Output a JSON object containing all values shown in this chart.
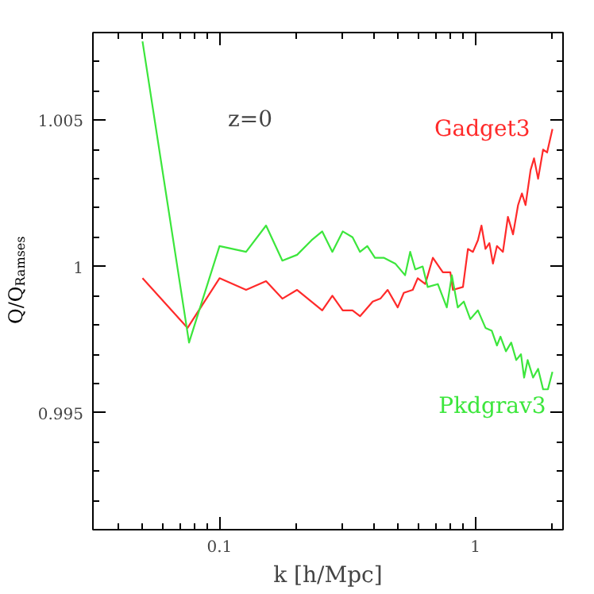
{
  "chart_data": {
    "type": "line",
    "xlabel": "k [h/Mpc]",
    "ylabel": "Q/Q$_{Ramses}$",
    "log": "x",
    "grid": false,
    "marker": "none",
    "line_style": "solid",
    "annotations": [
      "z=0"
    ],
    "xlim": [
      0.032,
      2.2
    ],
    "ylim": [
      0.991,
      1.008
    ],
    "xticks": [
      {
        "value": 0.04,
        "label": null
      },
      {
        "value": 0.05,
        "label": null
      },
      {
        "value": 0.06,
        "label": null
      },
      {
        "value": 0.07,
        "label": null
      },
      {
        "value": 0.08,
        "label": null
      },
      {
        "value": 0.09,
        "label": null
      },
      0.1,
      {
        "value": 0.2,
        "label": null
      },
      {
        "value": 0.3,
        "label": null
      },
      {
        "value": 0.4,
        "label": null
      },
      {
        "value": 0.5,
        "label": null
      },
      {
        "value": 0.6,
        "label": null
      },
      {
        "value": 0.7,
        "label": null
      },
      {
        "value": 0.8,
        "label": null
      },
      {
        "value": 0.9,
        "label": null
      },
      1,
      {
        "value": 2,
        "label": null
      }
    ],
    "yticks": [
      {
        "value": 0.992,
        "label": null
      },
      {
        "value": 0.993,
        "label": null
      },
      {
        "value": 0.994,
        "label": null
      },
      0.995,
      {
        "value": 0.996,
        "label": null
      },
      {
        "value": 0.997,
        "label": null
      },
      {
        "value": 0.998,
        "label": null
      },
      {
        "value": 0.999,
        "label": null
      },
      1,
      {
        "value": 1.001,
        "label": null
      },
      {
        "value": 1.002,
        "label": null
      },
      {
        "value": 1.003,
        "label": null
      },
      {
        "value": 1.004,
        "label": null
      },
      1.005,
      {
        "value": 1.006,
        "label": null
      },
      {
        "value": 1.007,
        "label": null
      },
      {
        "value": 1.008,
        "label": null
      }
    ],
    "series": [
      {
        "name": "Gadget3",
        "color": "#ff2a2a",
        "x": [
          0.05,
          0.075,
          0.1,
          0.127,
          0.152,
          0.176,
          0.201,
          0.252,
          0.276,
          0.303,
          0.331,
          0.354,
          0.397,
          0.425,
          0.454,
          0.497,
          0.525,
          0.569,
          0.595,
          0.637,
          0.682,
          0.746,
          0.798,
          0.817,
          0.894,
          0.935,
          0.978,
          1.023,
          1.056,
          1.095,
          1.134,
          1.171,
          1.214,
          1.281,
          1.34,
          1.403,
          1.468,
          1.52,
          1.57,
          1.643,
          1.695,
          1.758,
          1.839,
          1.906,
          2.0
        ],
        "values": [
          0.9996,
          0.9979,
          0.9996,
          0.9992,
          0.9995,
          0.9989,
          0.9992,
          0.9985,
          0.999,
          0.9985,
          0.9985,
          0.9983,
          0.9988,
          0.9989,
          0.9992,
          0.9986,
          0.9991,
          0.9992,
          0.9996,
          0.9994,
          1.0003,
          0.9998,
          0.9998,
          0.9992,
          0.9993,
          1.0006,
          1.0005,
          1.0009,
          1.0014,
          1.0006,
          1.0008,
          1.0001,
          1.0007,
          1.0005,
          1.0017,
          1.0011,
          1.0021,
          1.0025,
          1.0021,
          1.0033,
          1.0037,
          1.003,
          1.004,
          1.0039,
          1.0047
        ]
      },
      {
        "name": "Pkdgrav3",
        "color": "#3ce63c",
        "x": [
          0.05,
          0.076,
          0.1,
          0.127,
          0.152,
          0.176,
          0.201,
          0.229,
          0.252,
          0.276,
          0.303,
          0.331,
          0.354,
          0.378,
          0.405,
          0.438,
          0.486,
          0.531,
          0.556,
          0.582,
          0.622,
          0.651,
          0.713,
          0.773,
          0.809,
          0.853,
          0.901,
          0.955,
          1.023,
          1.095,
          1.159,
          1.214,
          1.253,
          1.316,
          1.38,
          1.444,
          1.507,
          1.55,
          1.6,
          1.68,
          1.758,
          1.839,
          1.92,
          2.0
        ],
        "values": [
          1.0077,
          0.9974,
          1.0007,
          1.0005,
          1.0014,
          1.0002,
          1.0004,
          1.0009,
          1.0012,
          1.0005,
          1.0012,
          1.001,
          1.0005,
          1.0007,
          1.0003,
          1.0003,
          1.0001,
          0.9997,
          1.0005,
          0.9999,
          1.0,
          0.9993,
          0.9994,
          0.9986,
          0.9997,
          0.9986,
          0.9988,
          0.9982,
          0.9985,
          0.9979,
          0.9978,
          0.9973,
          0.9976,
          0.9971,
          0.9974,
          0.9968,
          0.997,
          0.9962,
          0.9968,
          0.9962,
          0.9965,
          0.9958,
          0.9958,
          0.9964
        ]
      }
    ]
  }
}
